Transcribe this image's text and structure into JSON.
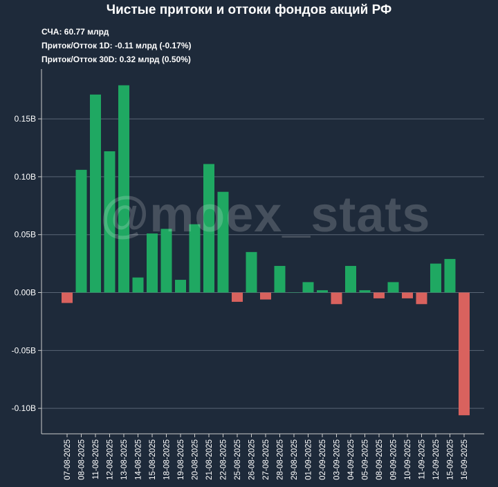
{
  "title": "Чистые притоки и оттоки фондов акций РФ",
  "stats": {
    "nav": "СЧА: 60.77 млрд",
    "flow_1d": "Приток/Отток 1D: -0.11 млрд (-0.17%)",
    "flow_30d": "Приток/Отток 30D: 0.32 млрд (0.50%)"
  },
  "watermark": "@moex_stats",
  "colors": {
    "positive": "#1fa862",
    "negative": "#d9625e",
    "background": "#1e2a3a",
    "grid": "#5a6676"
  },
  "chart_data": {
    "type": "bar",
    "categories": [
      "07-08-2025",
      "08-08-2025",
      "11-08-2025",
      "12-08-2025",
      "13-08-2025",
      "14-08-2025",
      "15-08-2025",
      "18-08-2025",
      "19-08-2025",
      "20-08-2025",
      "21-08-2025",
      "22-08-2025",
      "25-08-2025",
      "26-08-2025",
      "27-08-2025",
      "28-08-2025",
      "29-08-2025",
      "01-09-2025",
      "02-09-2025",
      "03-09-2025",
      "04-09-2025",
      "05-09-2025",
      "08-09-2025",
      "09-09-2025",
      "10-09-2025",
      "11-09-2025",
      "12-09-2025",
      "15-09-2025",
      "16-09-2025"
    ],
    "values": [
      -0.009,
      0.106,
      0.171,
      0.122,
      0.179,
      0.013,
      0.051,
      0.055,
      0.011,
      0.059,
      0.111,
      0.087,
      -0.008,
      0.035,
      -0.006,
      0.023,
      0.0,
      0.009,
      0.002,
      -0.01,
      0.023,
      0.002,
      -0.005,
      0.009,
      -0.005,
      -0.01,
      0.025,
      0.029,
      -0.106
    ],
    "ylim": [
      -0.122,
      0.193
    ],
    "yticks": [
      -0.1,
      -0.05,
      0.0,
      0.05,
      0.1,
      0.15
    ],
    "ytick_labels": [
      "-0.10B",
      "-0.05B",
      "0.00B",
      "0.05B",
      "0.10B",
      "0.15B"
    ],
    "grid": true
  }
}
